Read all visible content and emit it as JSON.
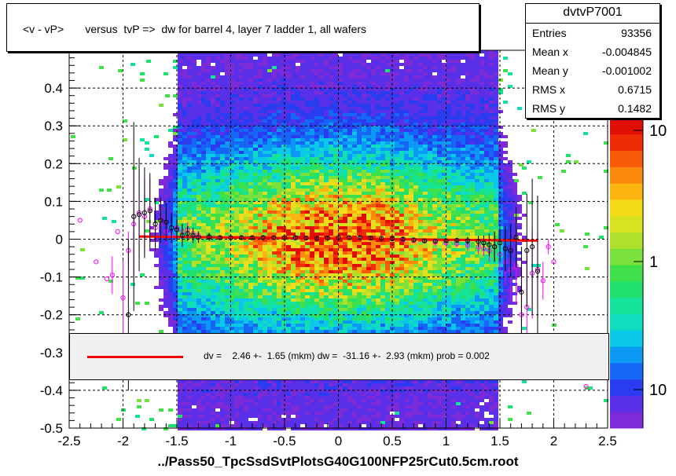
{
  "window": {
    "title": "<v - vP>       versus  tvP =>  dw for barrel 4, layer 7 ladder 1, all wafers"
  },
  "stats": {
    "name": "dvtvP7001",
    "rows": [
      {
        "key": "Entries",
        "value": "93356"
      },
      {
        "key": "Mean x",
        "value": "-0.004845"
      },
      {
        "key": "Mean y",
        "value": "-0.001002"
      },
      {
        "key": "RMS x",
        "value": "0.6715"
      },
      {
        "key": "RMS y",
        "value": "0.1482"
      }
    ]
  },
  "fit": {
    "text": "dv =    2.46 +-  1.65 (mkm) dw =  -31.16 +-  2.93 (mkm) prob = 0.002"
  },
  "colors": {
    "fit_line": "#ff0000",
    "profile_black": "#000000",
    "profile_magenta": "#ff00ff"
  },
  "chart_data": {
    "type": "heatmap",
    "title": "<v - vP>       versus  tvP =>  dw for barrel 4, layer 7 ladder 1, all wafers",
    "xlabel": "../Pass50_TpcSsdSvtPlotsG40G100NFP25rCut0.5cm.root",
    "ylabel": "",
    "xlim": [
      -2.5,
      2.5
    ],
    "ylim": [
      -0.5,
      0.5
    ],
    "x_ticks": [
      "-2.5",
      "-2",
      "-1.5",
      "-1",
      "-0.5",
      "0",
      "0.5",
      "1",
      "1.5",
      "2",
      "2.5"
    ],
    "y_ticks": [
      "-0.5",
      "-0.4",
      "-0.3",
      "-0.2",
      "-0.1",
      "0",
      "0.1",
      "0.2",
      "0.3",
      "0.4"
    ],
    "grid": true,
    "colorbar": {
      "scale": "log",
      "labels": [
        "10",
        "1",
        "10"
      ]
    },
    "density": {
      "x_core": [
        -1.5,
        1.5
      ],
      "y_sigma": 0.148,
      "peak": [
        0,
        0
      ]
    },
    "fit_line": {
      "x": [
        -1.85,
        1.85
      ],
      "y": [
        0.007,
        -0.004
      ]
    },
    "profile_black": {
      "x": [
        -1.95,
        -1.9,
        -1.85,
        -1.8,
        -1.75,
        -1.7,
        -1.65,
        -1.6,
        -1.55,
        -1.5,
        -1.45,
        -1.4,
        -1.35,
        -1.3,
        -1.2,
        -1.1,
        -1.0,
        -0.9,
        -0.8,
        -0.7,
        -0.6,
        -0.5,
        -0.4,
        -0.3,
        -0.2,
        -0.1,
        0.0,
        0.1,
        0.2,
        0.3,
        0.4,
        0.5,
        0.6,
        0.7,
        0.8,
        0.9,
        1.0,
        1.1,
        1.2,
        1.3,
        1.35,
        1.4,
        1.45,
        1.5,
        1.55,
        1.6,
        1.65,
        1.7,
        1.75,
        1.8,
        1.85
      ],
      "y": [
        -0.2,
        0.06,
        0.065,
        0.07,
        0.075,
        0.04,
        0.05,
        0.045,
        0.03,
        0.025,
        0.01,
        0.015,
        0.01,
        0.005,
        0.006,
        0.004,
        0.004,
        0.004,
        0.004,
        0.004,
        0.004,
        0.004,
        0.004,
        0.003,
        0.002,
        0.003,
        0.004,
        0.004,
        0.004,
        0.003,
        0.002,
        0.001,
        0.0,
        -0.002,
        -0.004,
        -0.005,
        -0.004,
        -0.003,
        -0.004,
        -0.006,
        -0.01,
        -0.015,
        -0.02,
        -0.01,
        -0.025,
        -0.03,
        0.005,
        -0.14,
        -0.03,
        -0.02,
        -0.085
      ],
      "err": [
        0.2,
        0.25,
        0.15,
        0.12,
        0.1,
        0.07,
        0.06,
        0.05,
        0.04,
        0.03,
        0.03,
        0.02,
        0.02,
        0.015,
        0.01,
        0.005,
        0.005,
        0.005,
        0.005,
        0.005,
        0.005,
        0.005,
        0.005,
        0.005,
        0.005,
        0.005,
        0.005,
        0.005,
        0.005,
        0.005,
        0.005,
        0.005,
        0.005,
        0.005,
        0.005,
        0.005,
        0.005,
        0.005,
        0.01,
        0.015,
        0.02,
        0.03,
        0.04,
        0.05,
        0.06,
        0.07,
        0.08,
        0.12,
        0.15,
        0.18,
        0.2
      ]
    },
    "profile_magenta": {
      "x": [
        -2.4,
        -2.25,
        -2.15,
        -2.1,
        -2.05,
        -2.0,
        -1.95,
        -1.9,
        -1.85,
        -1.8,
        -1.75,
        -1.7,
        -1.65,
        -1.6,
        -1.55,
        -1.5,
        -1.45,
        -1.4,
        -1.35,
        -1.3,
        -1.2,
        -1.1,
        -1.0,
        -0.9,
        -0.8,
        -0.7,
        -0.6,
        -0.5,
        -0.4,
        -0.3,
        -0.2,
        -0.1,
        0.0,
        0.1,
        0.2,
        0.3,
        0.4,
        0.5,
        0.6,
        0.7,
        0.8,
        0.9,
        1.0,
        1.1,
        1.2,
        1.3,
        1.35,
        1.4,
        1.45,
        1.5,
        1.55,
        1.6,
        1.65,
        1.7,
        1.75,
        1.8,
        1.85,
        1.9,
        1.95,
        2.0,
        2.3
      ],
      "y": [
        0.05,
        -0.06,
        -0.105,
        -0.095,
        0.02,
        -0.155,
        -0.03,
        0.04,
        0.07,
        0.06,
        0.08,
        0.03,
        0.05,
        0.02,
        0.01,
        0.03,
        0.02,
        0.025,
        0.015,
        0.01,
        0.006,
        0.004,
        0.004,
        0.004,
        0.004,
        0.004,
        0.004,
        0.004,
        0.003,
        0.003,
        0.002,
        0.003,
        0.004,
        0.004,
        0.003,
        0.003,
        0.002,
        0.001,
        -0.002,
        -0.004,
        -0.005,
        -0.008,
        -0.01,
        -0.012,
        -0.015,
        -0.02,
        -0.025,
        -0.03,
        -0.02,
        -0.04,
        -0.06,
        -0.08,
        -0.07,
        -0.2,
        -0.18,
        -0.09,
        -0.08,
        -0.11,
        -0.02,
        -0.06,
        -0.39
      ],
      "err": [
        0.0,
        0.0,
        0.0,
        0.05,
        0.0,
        0.1,
        0.05,
        0.15,
        0.12,
        0.1,
        0.08,
        0.05,
        0.04,
        0.03,
        0.03,
        0.02,
        0.02,
        0.02,
        0.015,
        0.01,
        0.01,
        0.005,
        0.005,
        0.005,
        0.005,
        0.005,
        0.005,
        0.005,
        0.005,
        0.005,
        0.005,
        0.005,
        0.005,
        0.005,
        0.005,
        0.005,
        0.005,
        0.005,
        0.005,
        0.005,
        0.005,
        0.01,
        0.01,
        0.01,
        0.015,
        0.02,
        0.02,
        0.03,
        0.04,
        0.05,
        0.06,
        0.08,
        0.1,
        0.12,
        0.15,
        0.12,
        0.1,
        0.05,
        0.02,
        0.0,
        0.0
      ]
    }
  }
}
